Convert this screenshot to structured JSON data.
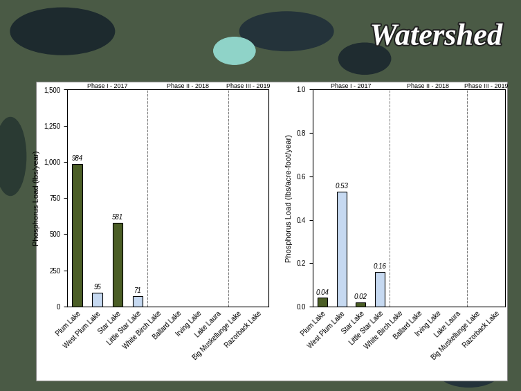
{
  "title": "Watershed",
  "chart_data": [
    {
      "type": "bar",
      "ylabel": "Phosphorus Load (lbs/year)",
      "categories": [
        "Plum Lake",
        "West Plum Lake",
        "Star Lake",
        "Little Star Lake",
        "White Birch Lake",
        "Ballard Lake",
        "Irving Lake",
        "Lake Laura",
        "Big Muskellunge Lake",
        "Razorback Lake"
      ],
      "values": [
        984,
        95,
        581,
        71,
        null,
        null,
        null,
        null,
        null,
        null
      ],
      "colors": [
        "#4b5e26",
        "#c6d9f1",
        "#4b5e26",
        "#c6d9f1"
      ],
      "data_labels": true,
      "groups": [
        {
          "label": "Phase I - 2017",
          "categories": [
            "Plum Lake",
            "West Plum Lake",
            "Star Lake",
            "Little Star Lake"
          ]
        },
        {
          "label": "Phase II - 2018",
          "categories": [
            "White Birch Lake",
            "Ballard Lake",
            "Irving Lake",
            "Lake Laura"
          ]
        },
        {
          "label": "Phase III - 2019",
          "categories": [
            "Big Muskellunge Lake",
            "Razorback Lake"
          ]
        }
      ],
      "ylim": [
        0,
        1500
      ],
      "yticks": [
        0,
        250,
        500,
        750,
        {
          "value": 1000,
          "label": "1,000"
        },
        {
          "value": 1250,
          "label": "1,250"
        },
        {
          "value": 1500,
          "label": "1,500"
        }
      ]
    },
    {
      "type": "bar",
      "ylabel": "Phosphorus Load (lbs/acre-foot/year)",
      "categories": [
        "Plum Lake",
        "West Plum Lake",
        "Star Lake",
        "Little Star Lake",
        "White Birch Lake",
        "Ballard Lake",
        "Irving Lake",
        "Lake Laura",
        "Big Muskellunge Lake",
        "Razorback Lake"
      ],
      "values": [
        0.04,
        0.53,
        0.02,
        0.16,
        null,
        null,
        null,
        null,
        null,
        null
      ],
      "colors": [
        "#4b5e26",
        "#c6d9f1",
        "#4b5e26",
        "#c6d9f1"
      ],
      "data_labels": true,
      "groups": [
        {
          "label": "Phase I - 2017",
          "categories": [
            "Plum Lake",
            "West Plum Lake",
            "Star Lake",
            "Little Star Lake"
          ]
        },
        {
          "label": "Phase II - 2018",
          "categories": [
            "White Birch Lake",
            "Ballard Lake",
            "Irving Lake",
            "Lake Laura"
          ]
        },
        {
          "label": "Phase III - 2019",
          "categories": [
            "Big Muskellunge Lake",
            "Razorback Lake"
          ]
        }
      ],
      "ylim": [
        0,
        1.0
      ],
      "yticks": [
        {
          "value": 0,
          "label": "0.0"
        },
        0.2,
        0.4,
        0.6,
        0.8,
        {
          "value": 1.0,
          "label": "1.0"
        }
      ]
    }
  ]
}
